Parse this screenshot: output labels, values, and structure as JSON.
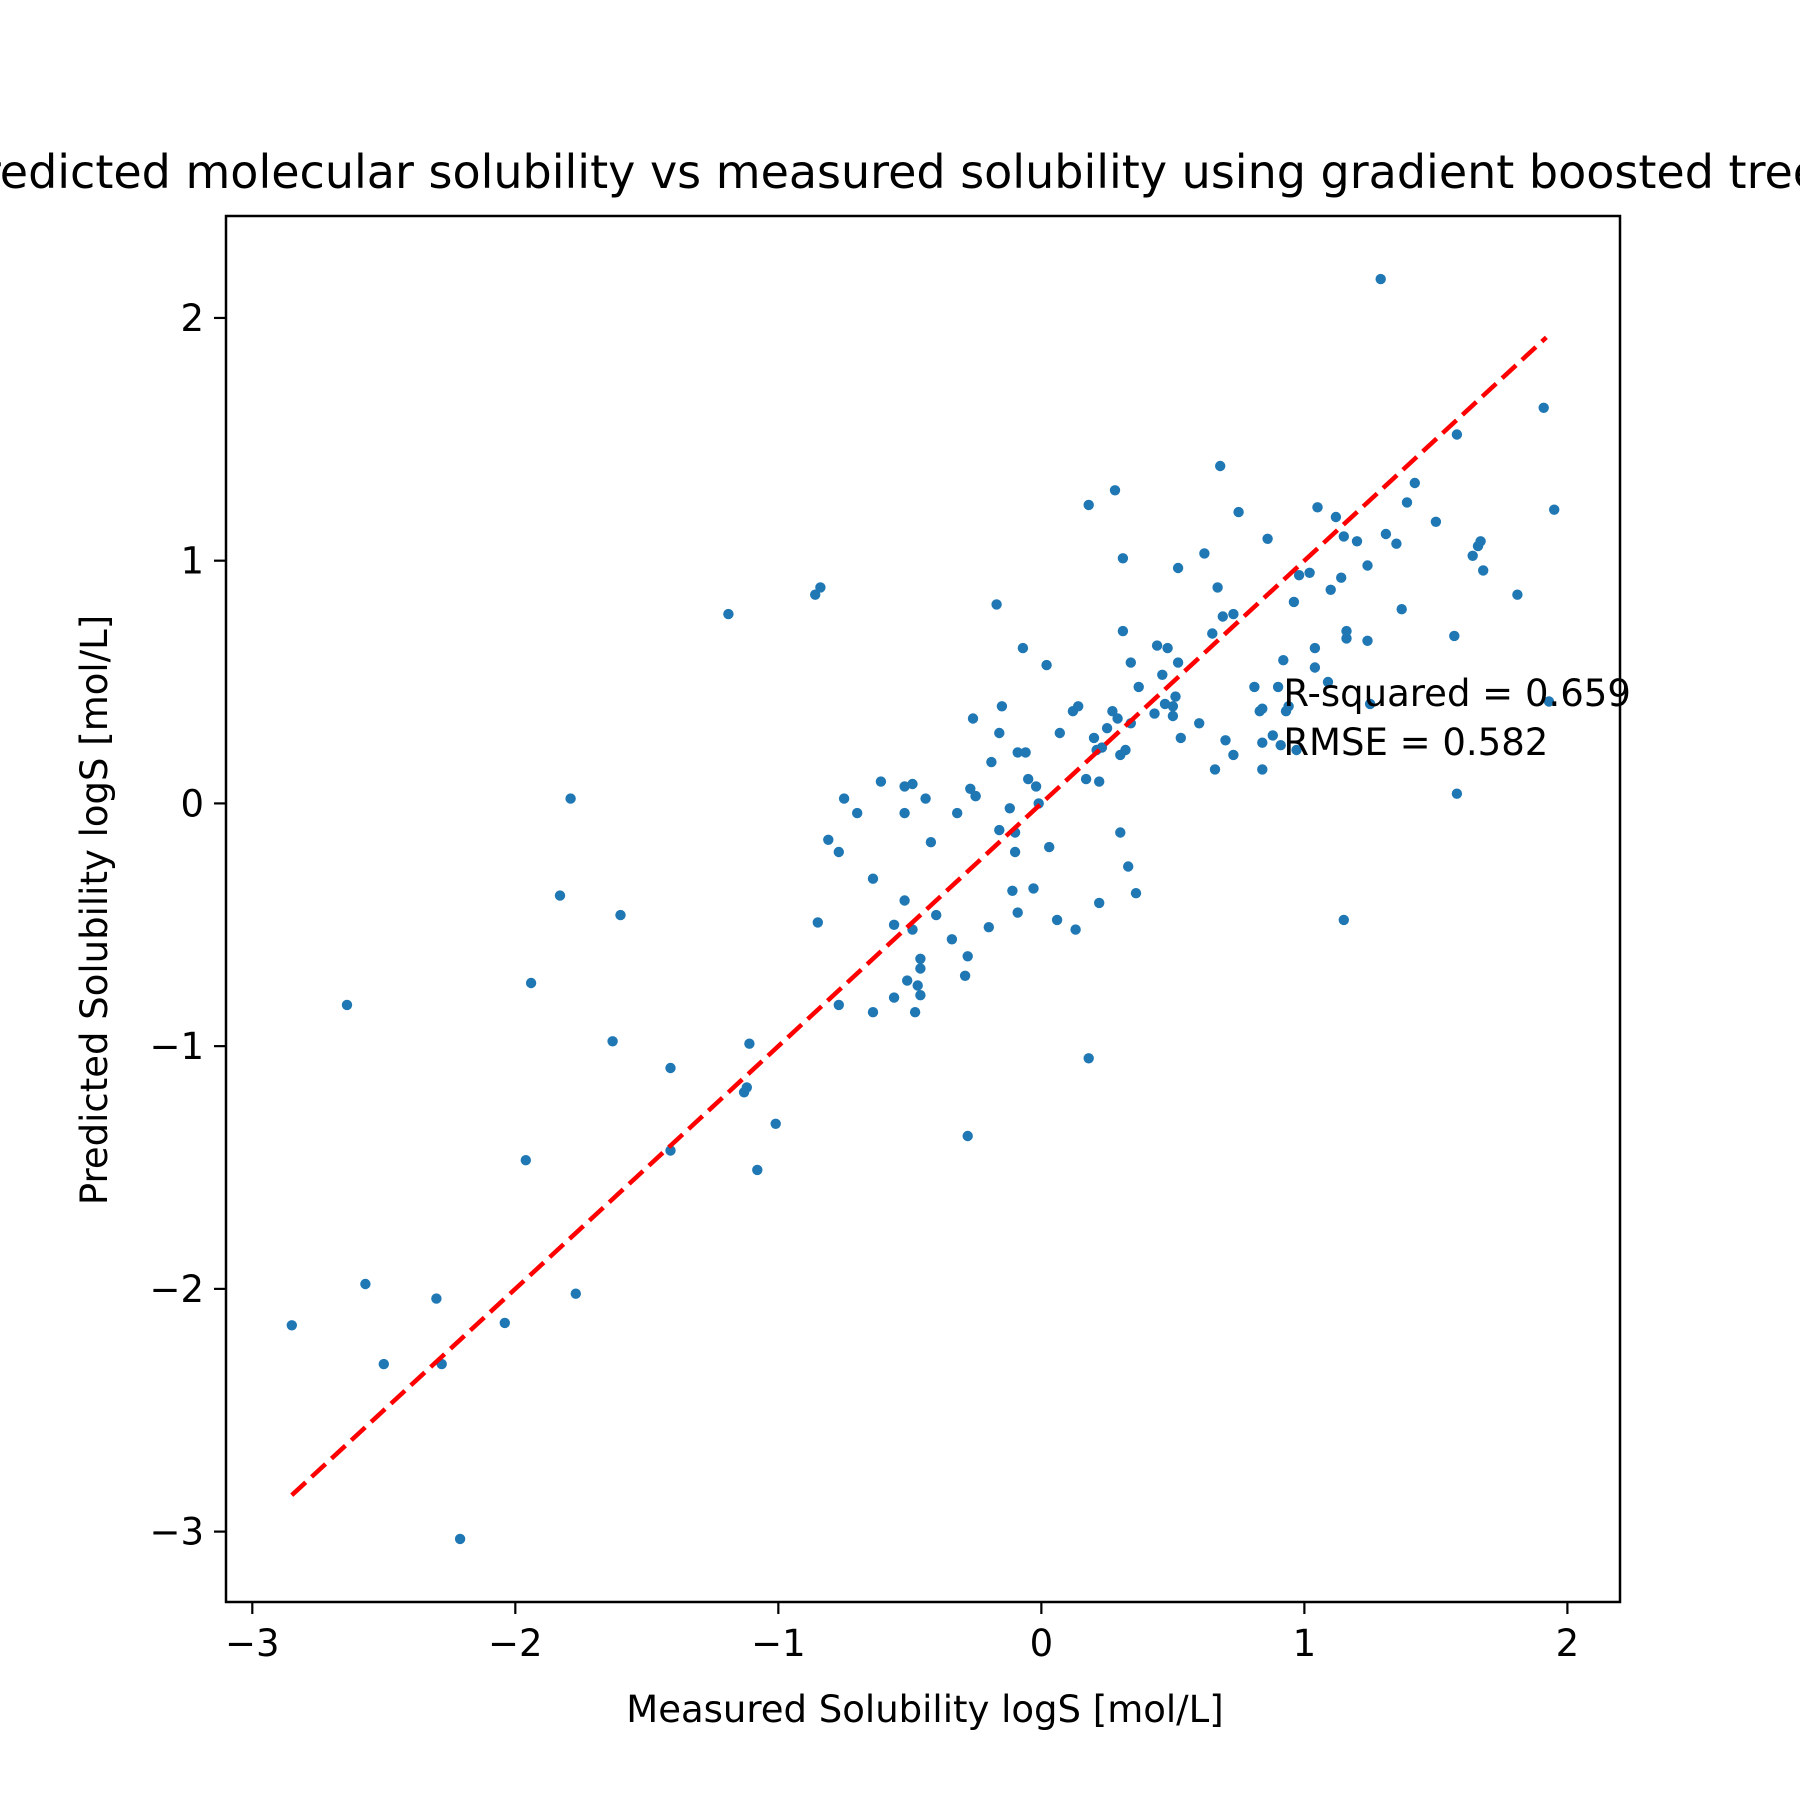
{
  "chart_data": {
    "type": "scatter",
    "title": "Predicted molecular solubility vs measured solubility using gradient boosted trees",
    "xlabel": "Measured Solubility logS [mol/L]",
    "ylabel": "Predicted Solubility logS [mol/L]",
    "xlim": [
      -3.1,
      2.2
    ],
    "ylim": [
      -3.29,
      2.42
    ],
    "xticks": [
      -3,
      -2,
      -1,
      0,
      1,
      2
    ],
    "yticks": [
      -3,
      -2,
      -1,
      0,
      1,
      2
    ],
    "xtick_labels": [
      "−3",
      "−2",
      "−1",
      "0",
      "1",
      "2"
    ],
    "ytick_labels": [
      "−3",
      "−2",
      "−1",
      "0",
      "1",
      "2"
    ],
    "grid": false,
    "point_color": "#1f77b4",
    "reference_line": {
      "style": "dashed",
      "color": "#ff0000",
      "from": [
        -2.85,
        -2.85
      ],
      "to": [
        1.92,
        1.92
      ]
    },
    "annotations": [
      "R-squared = 0.659",
      "RMSE = 0.582"
    ],
    "points": [
      [
        -2.85,
        -2.15
      ],
      [
        -2.64,
        -0.83
      ],
      [
        -2.57,
        -1.98
      ],
      [
        -2.5,
        -2.31
      ],
      [
        -2.3,
        -2.04
      ],
      [
        -2.28,
        -2.31
      ],
      [
        -2.21,
        -3.03
      ],
      [
        -2.04,
        -2.14
      ],
      [
        -1.96,
        -1.47
      ],
      [
        -1.94,
        -0.74
      ],
      [
        -1.83,
        -0.38
      ],
      [
        -1.79,
        0.02
      ],
      [
        -1.77,
        -2.02
      ],
      [
        -1.63,
        -0.98
      ],
      [
        -1.6,
        -0.46
      ],
      [
        -1.41,
        -1.09
      ],
      [
        -1.41,
        -1.43
      ],
      [
        -1.19,
        0.78
      ],
      [
        -1.13,
        -1.19
      ],
      [
        -1.12,
        -1.17
      ],
      [
        -1.11,
        -0.99
      ],
      [
        -1.08,
        -1.51
      ],
      [
        -1.01,
        -1.32
      ],
      [
        -0.86,
        0.86
      ],
      [
        -0.85,
        -0.49
      ],
      [
        -0.84,
        0.89
      ],
      [
        -0.81,
        -0.15
      ],
      [
        -0.77,
        -0.2
      ],
      [
        -0.77,
        -0.83
      ],
      [
        -0.75,
        0.02
      ],
      [
        -0.7,
        -0.04
      ],
      [
        -0.64,
        -0.86
      ],
      [
        -0.64,
        -0.31
      ],
      [
        -0.61,
        0.09
      ],
      [
        -0.56,
        -0.5
      ],
      [
        -0.56,
        -0.8
      ],
      [
        -0.52,
        0.07
      ],
      [
        -0.52,
        -0.4
      ],
      [
        -0.52,
        -0.04
      ],
      [
        -0.51,
        -0.73
      ],
      [
        -0.49,
        0.08
      ],
      [
        -0.49,
        -0.52
      ],
      [
        -0.48,
        -0.86
      ],
      [
        -0.47,
        -0.75
      ],
      [
        -0.46,
        -0.64
      ],
      [
        -0.46,
        -0.68
      ],
      [
        -0.46,
        -0.79
      ],
      [
        -0.44,
        0.02
      ],
      [
        -0.42,
        -0.16
      ],
      [
        -0.4,
        -0.46
      ],
      [
        -0.34,
        -0.56
      ],
      [
        -0.32,
        -0.04
      ],
      [
        -0.29,
        -0.71
      ],
      [
        -0.28,
        -1.37
      ],
      [
        -0.28,
        -0.63
      ],
      [
        -0.27,
        0.06
      ],
      [
        -0.26,
        0.35
      ],
      [
        -0.25,
        0.03
      ],
      [
        -0.25,
        0.03
      ],
      [
        -0.2,
        -0.51
      ],
      [
        -0.19,
        0.17
      ],
      [
        -0.17,
        0.82
      ],
      [
        -0.16,
        -0.11
      ],
      [
        -0.16,
        0.29
      ],
      [
        -0.15,
        0.4
      ],
      [
        -0.12,
        -0.02
      ],
      [
        -0.11,
        -0.36
      ],
      [
        -0.1,
        -0.2
      ],
      [
        -0.1,
        -0.12
      ],
      [
        -0.09,
        0.21
      ],
      [
        -0.09,
        -0.45
      ],
      [
        -0.07,
        0.64
      ],
      [
        -0.06,
        0.21
      ],
      [
        -0.05,
        0.1
      ],
      [
        -0.03,
        -0.35
      ],
      [
        -0.02,
        0.07
      ],
      [
        -0.01,
        0.0
      ],
      [
        0.02,
        0.57
      ],
      [
        0.03,
        -0.18
      ],
      [
        0.06,
        -0.48
      ],
      [
        0.07,
        0.29
      ],
      [
        0.12,
        0.38
      ],
      [
        0.13,
        -0.52
      ],
      [
        0.14,
        0.4
      ],
      [
        0.17,
        0.1
      ],
      [
        0.18,
        1.23
      ],
      [
        0.18,
        -1.05
      ],
      [
        0.2,
        0.27
      ],
      [
        0.21,
        0.22
      ],
      [
        0.22,
        -0.41
      ],
      [
        0.22,
        0.09
      ],
      [
        0.23,
        0.23
      ],
      [
        0.25,
        0.31
      ],
      [
        0.27,
        0.38
      ],
      [
        0.28,
        1.29
      ],
      [
        0.29,
        0.35
      ],
      [
        0.3,
        0.2
      ],
      [
        0.3,
        -0.12
      ],
      [
        0.31,
        0.71
      ],
      [
        0.31,
        1.01
      ],
      [
        0.32,
        0.22
      ],
      [
        0.33,
        -0.26
      ],
      [
        0.34,
        0.58
      ],
      [
        0.34,
        0.33
      ],
      [
        0.36,
        -0.37
      ],
      [
        0.37,
        0.48
      ],
      [
        0.43,
        0.37
      ],
      [
        0.44,
        0.65
      ],
      [
        0.46,
        0.53
      ],
      [
        0.47,
        0.41
      ],
      [
        0.48,
        0.64
      ],
      [
        0.5,
        0.36
      ],
      [
        0.5,
        0.4
      ],
      [
        0.51,
        0.44
      ],
      [
        0.52,
        0.97
      ],
      [
        0.52,
        0.58
      ],
      [
        0.53,
        0.27
      ],
      [
        0.6,
        0.33
      ],
      [
        0.62,
        1.03
      ],
      [
        0.65,
        0.7
      ],
      [
        0.66,
        0.14
      ],
      [
        0.67,
        0.89
      ],
      [
        0.68,
        1.39
      ],
      [
        0.69,
        0.77
      ],
      [
        0.7,
        0.26
      ],
      [
        0.73,
        0.2
      ],
      [
        0.73,
        0.78
      ],
      [
        0.75,
        1.2
      ],
      [
        0.81,
        0.48
      ],
      [
        0.83,
        0.38
      ],
      [
        0.84,
        0.25
      ],
      [
        0.84,
        0.39
      ],
      [
        0.84,
        0.14
      ],
      [
        0.86,
        1.09
      ],
      [
        0.88,
        0.28
      ],
      [
        0.9,
        0.48
      ],
      [
        0.91,
        0.24
      ],
      [
        0.92,
        0.59
      ],
      [
        0.93,
        0.38
      ],
      [
        0.94,
        0.4
      ],
      [
        0.96,
        0.83
      ],
      [
        0.97,
        0.22
      ],
      [
        0.98,
        0.94
      ],
      [
        1.02,
        0.95
      ],
      [
        1.04,
        0.56
      ],
      [
        1.04,
        0.64
      ],
      [
        1.05,
        1.22
      ],
      [
        1.09,
        0.5
      ],
      [
        1.1,
        0.88
      ],
      [
        1.12,
        1.18
      ],
      [
        1.14,
        0.93
      ],
      [
        1.15,
        1.1
      ],
      [
        1.15,
        -0.48
      ],
      [
        1.16,
        0.68
      ],
      [
        1.16,
        0.71
      ],
      [
        1.2,
        1.08
      ],
      [
        1.24,
        0.98
      ],
      [
        1.24,
        0.67
      ],
      [
        1.25,
        0.41
      ],
      [
        1.29,
        2.16
      ],
      [
        1.31,
        1.11
      ],
      [
        1.35,
        1.07
      ],
      [
        1.37,
        0.8
      ],
      [
        1.39,
        1.24
      ],
      [
        1.42,
        1.32
      ],
      [
        1.5,
        1.16
      ],
      [
        1.57,
        0.69
      ],
      [
        1.58,
        0.04
      ],
      [
        1.58,
        1.52
      ],
      [
        1.64,
        1.02
      ],
      [
        1.66,
        1.06
      ],
      [
        1.67,
        1.08
      ],
      [
        1.68,
        0.96
      ],
      [
        1.81,
        0.86
      ],
      [
        1.91,
        1.63
      ],
      [
        1.93,
        0.42
      ],
      [
        1.95,
        1.21
      ]
    ]
  }
}
